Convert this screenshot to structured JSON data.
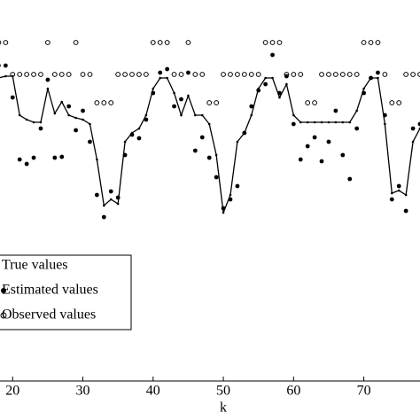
{
  "chart_data": {
    "type": "line",
    "xlabel": "k",
    "x": [
      18,
      19,
      20,
      21,
      22,
      23,
      24,
      25,
      26,
      27,
      28,
      29,
      30,
      31,
      32,
      33,
      34,
      35,
      36,
      37,
      38,
      39,
      40,
      41,
      42,
      43,
      44,
      45,
      46,
      47,
      48,
      49,
      50,
      51,
      52,
      53,
      54,
      55,
      56,
      57,
      58,
      59,
      60,
      61,
      62,
      63,
      64,
      65,
      66,
      67,
      68,
      69,
      70,
      71,
      72,
      73,
      74,
      75,
      76,
      77,
      78
    ],
    "series": [
      {
        "name": "True values",
        "color": "#000000",
        "marker": "line",
        "values": [
          34.2,
          34.4,
          34.4,
          30,
          29.5,
          29.2,
          29.2,
          33,
          30.2,
          31.5,
          30,
          29.7,
          29.5,
          29,
          25,
          19.8,
          20.5,
          20,
          27,
          28,
          28.5,
          30,
          33,
          34.2,
          34.2,
          32.5,
          30,
          32.2,
          30,
          30,
          29,
          25.5,
          19,
          21,
          27,
          28,
          30,
          33,
          34.2,
          34.2,
          32,
          33.5,
          30,
          29.2,
          29.2,
          29.2,
          29.2,
          29.2,
          29.2,
          29.2,
          29.2,
          30.5,
          33,
          34.2,
          34.2,
          29,
          21.2,
          21.5,
          21,
          27,
          28.5
        ]
      },
      {
        "name": "Estimated values",
        "color": "#000000",
        "marker": "dot",
        "values": [
          35.6,
          35.6,
          32,
          25,
          24.5,
          25.2,
          28.5,
          34,
          25.2,
          25.3,
          31,
          28.3,
          30.5,
          27,
          21,
          18.5,
          21.4,
          20.7,
          25.5,
          27.8,
          27.4,
          29.5,
          32.5,
          34.8,
          35.2,
          31,
          31.8,
          34.8,
          26,
          27.5,
          25.2,
          23,
          19.5,
          20.5,
          22,
          28,
          31,
          32.8,
          33.5,
          36.8,
          32.5,
          34.4,
          29,
          25,
          26.5,
          27.5,
          24.8,
          27,
          30.5,
          25.5,
          22.8,
          28.5,
          32.5,
          34.2,
          34.8,
          30,
          20.5,
          22,
          19.2,
          28.5,
          29
        ]
      },
      {
        "name": "Observed values",
        "color": "#000000",
        "marker": "circle",
        "values": [
          38.2,
          38.2,
          34.6,
          34.6,
          34.6,
          34.6,
          34.6,
          38.2,
          34.6,
          34.6,
          34.6,
          38.2,
          34.6,
          34.6,
          31.4,
          31.4,
          31.4,
          34.6,
          34.6,
          34.6,
          34.6,
          34.6,
          38.2,
          38.2,
          38.2,
          34.6,
          34.6,
          38.2,
          34.6,
          34.6,
          31.4,
          31.4,
          34.6,
          34.6,
          34.6,
          34.6,
          34.6,
          34.6,
          38.2,
          38.2,
          38.2,
          34.6,
          34.6,
          34.6,
          31.4,
          31.4,
          34.6,
          34.6,
          34.6,
          34.6,
          34.6,
          34.6,
          38.2,
          38.2,
          38.2,
          34.6,
          31.4,
          31.4,
          34.6,
          34.6,
          34.6
        ]
      }
    ],
    "xlim": [
      18.2,
      78
    ],
    "xticks": [
      20,
      30,
      40,
      50,
      60,
      70
    ],
    "ylim": [
      0,
      43
    ]
  }
}
